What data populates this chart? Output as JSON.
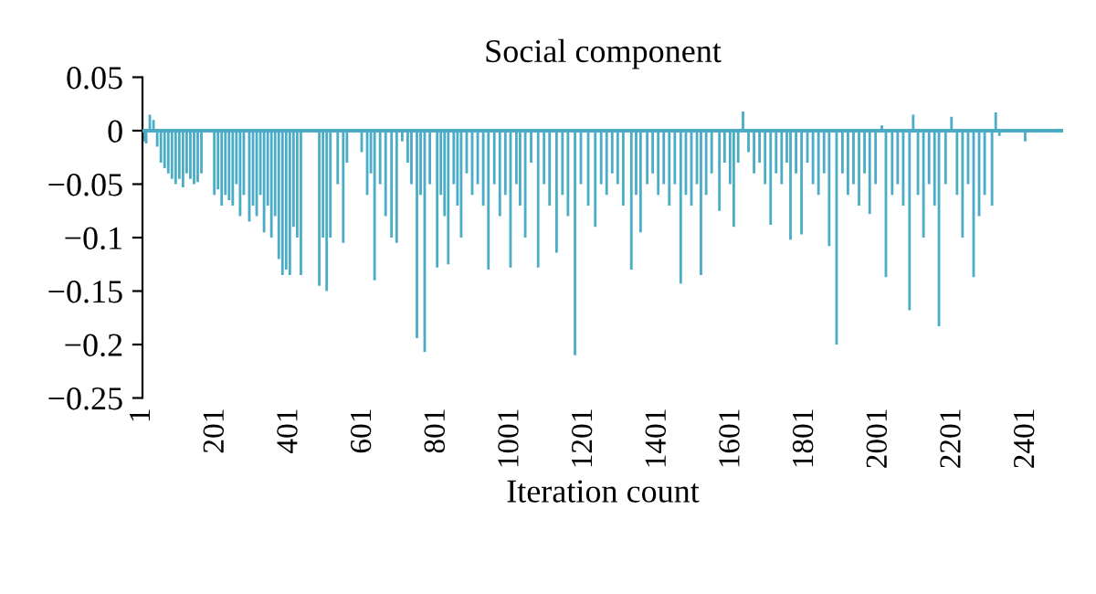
{
  "chart_data": {
    "type": "bar",
    "title": "Social component",
    "xlabel": "Iteration count",
    "x": [
      6,
      11,
      21,
      31,
      41,
      51,
      61,
      71,
      81,
      91,
      101,
      111,
      121,
      131,
      141,
      151,
      161,
      196,
      206,
      216,
      226,
      236,
      246,
      256,
      266,
      276,
      291,
      301,
      311,
      321,
      331,
      341,
      351,
      361,
      371,
      381,
      391,
      401,
      411,
      421,
      431,
      481,
      491,
      501,
      511,
      531,
      546,
      556,
      596,
      611,
      621,
      631,
      646,
      661,
      677,
      691,
      706,
      721,
      731,
      746,
      756,
      767,
      781,
      801,
      811,
      821,
      831,
      846,
      856,
      866,
      881,
      896,
      911,
      926,
      940,
      956,
      971,
      986,
      1000,
      1016,
      1026,
      1040,
      1056,
      1075,
      1091,
      1106,
      1125,
      1141,
      1156,
      1175,
      1191,
      1211,
      1230,
      1246,
      1261,
      1276,
      1291,
      1306,
      1328,
      1341,
      1353,
      1371,
      1386,
      1401,
      1416,
      1431,
      1446,
      1462,
      1476,
      1491,
      1506,
      1517,
      1531,
      1546,
      1567,
      1581,
      1596,
      1606,
      1618,
      1631,
      1646,
      1661,
      1676,
      1691,
      1706,
      1721,
      1736,
      1750,
      1760,
      1775,
      1790,
      1806,
      1821,
      1836,
      1851,
      1865,
      1885,
      1901,
      1916,
      1931,
      1946,
      1961,
      1975,
      1991,
      2008,
      2019,
      2036,
      2051,
      2066,
      2083,
      2093,
      2106,
      2121,
      2136,
      2151,
      2163,
      2181,
      2197,
      2212,
      2227,
      2242,
      2257,
      2272,
      2287,
      2307,
      2317,
      2327,
      2397
    ],
    "values": [
      -0.01,
      -0.012,
      0.015,
      0.01,
      -0.015,
      -0.03,
      -0.035,
      -0.04,
      -0.045,
      -0.05,
      -0.045,
      -0.053,
      -0.04,
      -0.045,
      -0.05,
      -0.048,
      -0.04,
      -0.06,
      -0.055,
      -0.07,
      -0.06,
      -0.065,
      -0.07,
      -0.05,
      -0.08,
      -0.06,
      -0.085,
      -0.07,
      -0.08,
      -0.06,
      -0.095,
      -0.07,
      -0.1,
      -0.08,
      -0.12,
      -0.135,
      -0.13,
      -0.135,
      -0.09,
      -0.1,
      -0.135,
      -0.145,
      -0.1,
      -0.15,
      -0.1,
      -0.05,
      -0.105,
      -0.03,
      -0.02,
      -0.06,
      -0.04,
      -0.14,
      -0.05,
      -0.08,
      -0.1,
      -0.105,
      -0.01,
      -0.03,
      -0.05,
      -0.194,
      -0.06,
      -0.207,
      -0.05,
      -0.128,
      -0.06,
      -0.08,
      -0.125,
      -0.05,
      -0.07,
      -0.1,
      -0.04,
      -0.06,
      -0.05,
      -0.07,
      -0.13,
      -0.05,
      -0.08,
      -0.06,
      -0.128,
      -0.05,
      -0.07,
      -0.1,
      -0.03,
      -0.128,
      -0.05,
      -0.07,
      -0.114,
      -0.06,
      -0.08,
      -0.21,
      -0.05,
      -0.07,
      -0.09,
      -0.05,
      -0.06,
      -0.04,
      -0.05,
      -0.07,
      -0.13,
      -0.06,
      -0.095,
      -0.05,
      -0.04,
      -0.06,
      -0.05,
      -0.07,
      -0.05,
      -0.143,
      -0.06,
      -0.07,
      -0.05,
      -0.135,
      -0.06,
      -0.04,
      -0.075,
      -0.03,
      -0.05,
      -0.09,
      -0.03,
      0.018,
      -0.02,
      -0.04,
      -0.03,
      -0.05,
      -0.088,
      -0.04,
      -0.05,
      -0.03,
      -0.102,
      -0.04,
      -0.097,
      -0.03,
      -0.05,
      -0.06,
      -0.04,
      -0.108,
      -0.2,
      -0.04,
      -0.06,
      -0.05,
      -0.07,
      -0.04,
      -0.078,
      -0.05,
      0.005,
      -0.137,
      -0.06,
      -0.05,
      -0.07,
      -0.168,
      0.015,
      -0.06,
      -0.1,
      -0.05,
      -0.07,
      -0.183,
      -0.05,
      0.013,
      -0.06,
      -0.1,
      -0.05,
      -0.137,
      -0.08,
      -0.06,
      -0.07,
      0.017,
      -0.005,
      -0.01
    ],
    "color": "#4bacc6",
    "xlim": [
      1,
      2500
    ],
    "xticks": [
      1,
      201,
      401,
      601,
      801,
      1001,
      1201,
      1401,
      1601,
      1801,
      2001,
      2201,
      2401
    ],
    "ylim": [
      -0.25,
      0.05
    ],
    "yticks": [
      0.05,
      0,
      {
        "value": -0.05,
        "label": "−0.05"
      },
      {
        "value": -0.1,
        "label": "−0.1"
      },
      {
        "value": -0.15,
        "label": "−0.15"
      },
      {
        "value": -0.2,
        "label": "−0.2"
      },
      {
        "value": -0.25,
        "label": "−0.25"
      }
    ],
    "ref_lines": [
      {
        "axis": "y",
        "value": 0,
        "color": "#4bacc6"
      }
    ],
    "grid": false,
    "legend": false
  }
}
